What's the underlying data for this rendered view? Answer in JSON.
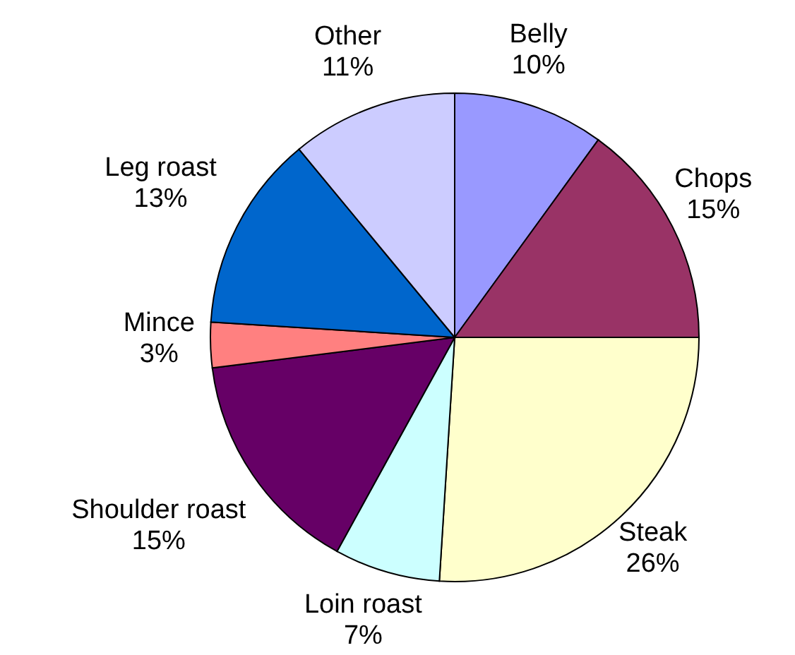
{
  "chart_data": {
    "type": "pie",
    "categories": [
      "Belly",
      "Chops",
      "Steak",
      "Loin roast",
      "Shoulder roast",
      "Mince",
      "Leg roast",
      "Other"
    ],
    "values": [
      10,
      15,
      26,
      7,
      15,
      3,
      13,
      11
    ],
    "colors": [
      "#9999ff",
      "#993366",
      "#ffffcc",
      "#ccffff",
      "#660066",
      "#ff8080",
      "#0066cc",
      "#ccccff"
    ],
    "value_labels": [
      "10%",
      "15%",
      "26%",
      "7%",
      "15%",
      "3%",
      "13%",
      "11%"
    ]
  }
}
